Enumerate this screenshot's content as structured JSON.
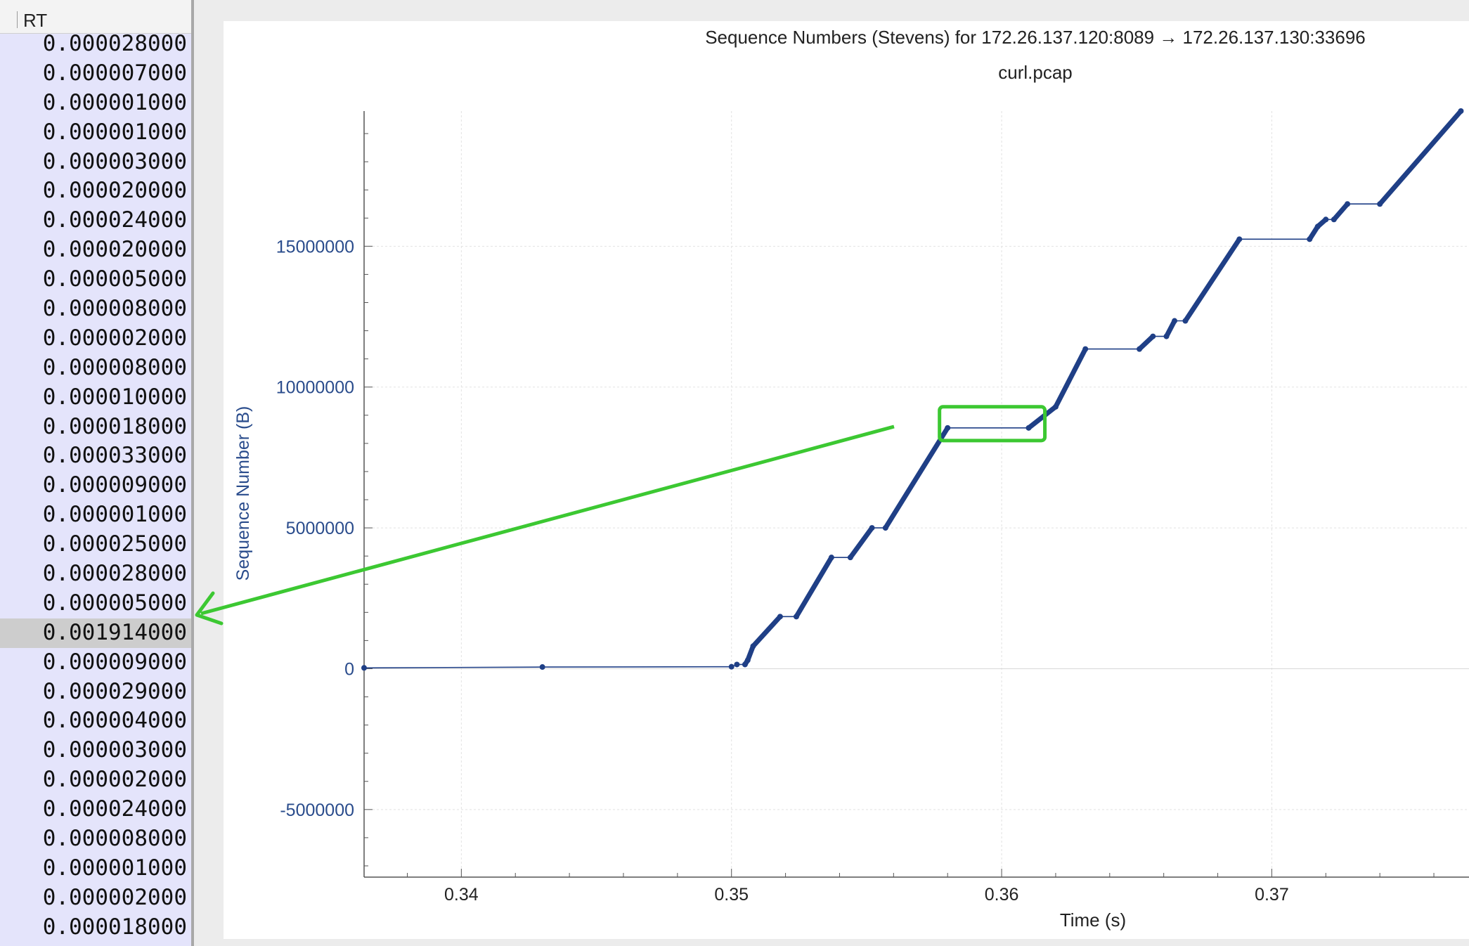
{
  "rt_panel": {
    "header": "RT",
    "selected_index": 20,
    "rows": [
      "0.000028000",
      "0.000007000",
      "0.000001000",
      "0.000001000",
      "0.000003000",
      "0.000020000",
      "0.000024000",
      "0.000020000",
      "0.000005000",
      "0.000008000",
      "0.000002000",
      "0.000008000",
      "0.000010000",
      "0.000018000",
      "0.000033000",
      "0.000009000",
      "0.000001000",
      "0.000025000",
      "0.000028000",
      "0.000005000",
      "0.001914000",
      "0.000009000",
      "0.000029000",
      "0.000004000",
      "0.000003000",
      "0.000002000",
      "0.000024000",
      "0.000008000",
      "0.000001000",
      "0.000002000",
      "0.000018000"
    ]
  },
  "annotation": {
    "color": "#3cc832",
    "description": ""
  },
  "chart_data": {
    "type": "scatter",
    "title": "Sequence Numbers (Stevens) for 172.26.137.120:8089 → 172.26.137.130:33696",
    "subtitle": "curl.pcap",
    "xlabel": "Time (s)",
    "ylabel": "Sequence Number (B)",
    "xlim": [
      0.3364,
      0.3773
    ],
    "ylim": [
      -7400000,
      19800000
    ],
    "x_ticks": [
      0.34,
      0.35,
      0.36,
      0.37
    ],
    "x_tick_labels": [
      "0.34",
      "0.35",
      "0.36",
      "0.37"
    ],
    "y_ticks": [
      -5000000,
      0,
      5000000,
      10000000,
      15000000
    ],
    "y_tick_labels": [
      "-5000000",
      "0",
      "5000000",
      "10000000",
      "15000000"
    ],
    "grid": true,
    "series_color": "#1f3f86",
    "axis_text_color": "#2a4c8c",
    "highlight_box": {
      "x": [
        0.3577,
        0.3616
      ],
      "y": [
        8100000,
        9300000
      ]
    },
    "series": [
      {
        "points": [
          [
            0.3364,
            30000
          ],
          [
            0.343,
            60000
          ],
          [
            0.35,
            70000
          ],
          [
            0.3502,
            150000
          ],
          [
            0.3505,
            150000
          ],
          [
            0.3506,
            300000
          ],
          [
            0.3508,
            800000
          ],
          [
            0.3518,
            1850000
          ],
          [
            0.3524,
            1850000
          ],
          [
            0.3537,
            3950000
          ],
          [
            0.3544,
            3950000
          ],
          [
            0.3552,
            5000000
          ],
          [
            0.3557,
            5000000
          ],
          [
            0.358,
            8550000
          ],
          [
            0.361,
            8550000
          ],
          [
            0.362,
            9300000
          ],
          [
            0.3631,
            11350000
          ],
          [
            0.3651,
            11350000
          ],
          [
            0.3656,
            11800000
          ],
          [
            0.3661,
            11800000
          ],
          [
            0.3664,
            12350000
          ],
          [
            0.3668,
            12350000
          ],
          [
            0.3688,
            15250000
          ],
          [
            0.3714,
            15250000
          ],
          [
            0.3717,
            15700000
          ],
          [
            0.372,
            15950000
          ],
          [
            0.3723,
            15950000
          ],
          [
            0.3728,
            16500000
          ],
          [
            0.374,
            16500000
          ],
          [
            0.377,
            19800000
          ]
        ]
      }
    ]
  }
}
